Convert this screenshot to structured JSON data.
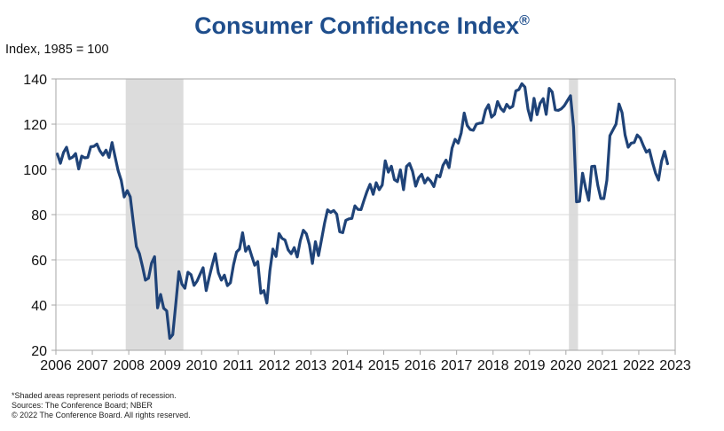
{
  "chart_data": {
    "type": "line",
    "title": "Consumer Confidence Index",
    "title_mark": "®",
    "ylabel": "Index, 1985 = 100",
    "xlabel": "",
    "ylim": [
      20,
      140
    ],
    "yticks": [
      20,
      40,
      60,
      80,
      100,
      120,
      140
    ],
    "xticks": [
      "2006",
      "2007",
      "2008",
      "2009",
      "2010",
      "2011",
      "2012",
      "2013",
      "2014",
      "2015",
      "2016",
      "2017",
      "2018",
      "2019",
      "2020",
      "2021",
      "2022",
      "2023"
    ],
    "grid": true,
    "legend": "none",
    "line_color": "#1f4378",
    "recession_color": "#dcdcdc",
    "recessions": [
      {
        "start": "2007-12",
        "end": "2009-06"
      },
      {
        "start": "2020-02",
        "end": "2020-04"
      }
    ],
    "series": [
      {
        "name": "Consumer Confidence Index",
        "start": "2006-01",
        "frequency": "monthly",
        "values": [
          106.8,
          102.7,
          107.5,
          109.8,
          104.7,
          105.4,
          107.0,
          100.2,
          105.9,
          105.1,
          105.3,
          110.0,
          110.2,
          111.2,
          108.2,
          106.3,
          108.5,
          105.3,
          111.9,
          105.6,
          99.5,
          95.2,
          87.8,
          90.6,
          87.9,
          76.4,
          65.9,
          62.8,
          57.2,
          51.0,
          51.9,
          58.5,
          61.4,
          38.8,
          44.7,
          38.6,
          37.4,
          25.3,
          26.9,
          40.8,
          54.8,
          49.3,
          47.4,
          54.5,
          53.4,
          48.7,
          50.6,
          53.6,
          56.5,
          46.4,
          52.3,
          57.7,
          62.7,
          54.3,
          51.0,
          53.2,
          48.6,
          49.9,
          57.8,
          63.4,
          64.8,
          72.0,
          63.8,
          66.0,
          61.7,
          57.6,
          59.2,
          45.2,
          46.4,
          40.9,
          55.2,
          64.8,
          61.5,
          71.6,
          69.5,
          68.7,
          64.4,
          62.7,
          65.4,
          61.3,
          68.4,
          73.1,
          71.5,
          66.7,
          58.4,
          68.0,
          61.9,
          69.0,
          76.2,
          82.1,
          81.0,
          81.8,
          80.2,
          72.4,
          72.0,
          77.5,
          78.1,
          78.3,
          83.9,
          82.3,
          82.2,
          86.4,
          90.3,
          93.4,
          89.0,
          94.1,
          91.0,
          93.1,
          103.8,
          98.8,
          101.4,
          95.5,
          94.6,
          99.8,
          91.0,
          101.3,
          102.6,
          99.1,
          92.6,
          96.3,
          97.8,
          94.0,
          96.2,
          94.7,
          92.4,
          97.4,
          96.7,
          101.8,
          104.1,
          100.8,
          109.4,
          113.3,
          111.6,
          116.1,
          124.9,
          119.4,
          117.6,
          117.3,
          120.0,
          120.4,
          120.6,
          126.2,
          128.6,
          123.1,
          124.3,
          130.0,
          127.0,
          125.6,
          128.8,
          127.1,
          127.9,
          134.7,
          135.3,
          137.9,
          136.4,
          126.6,
          121.7,
          131.4,
          124.2,
          129.2,
          131.3,
          124.3,
          135.8,
          134.2,
          126.3,
          126.1,
          126.8,
          128.2,
          130.4,
          132.6,
          118.8,
          85.7,
          85.9,
          98.3,
          91.7,
          86.3,
          101.3,
          101.4,
          92.9,
          87.1,
          87.1,
          95.2,
          114.9,
          117.5,
          120.0,
          128.9,
          125.1,
          115.2,
          109.8,
          111.6,
          111.9,
          115.2,
          113.8,
          110.5,
          107.6,
          108.6,
          103.2,
          98.4,
          95.3,
          103.6,
          108.0,
          102.5
        ]
      }
    ],
    "notes": [
      "*Shaded areas represent periods of recession.",
      "Sources: The Conference Board; NBER",
      "© 2022 The Conference Board. All rights reserved."
    ]
  }
}
